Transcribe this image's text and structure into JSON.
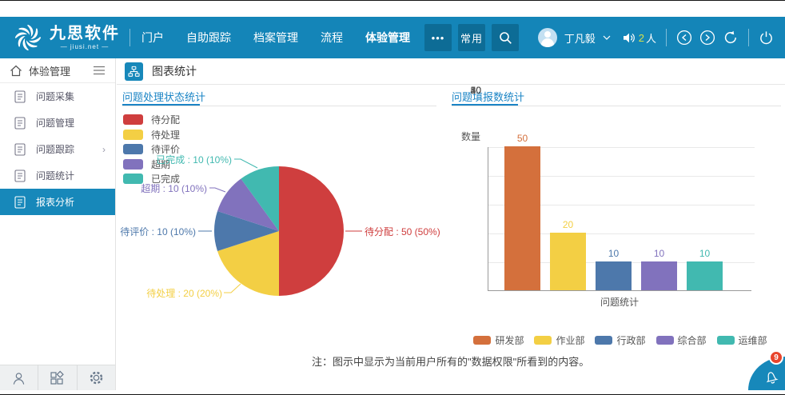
{
  "brand": {
    "name": "九思软件",
    "domain": "— jiusi.net —"
  },
  "topnav": {
    "items": [
      "门户",
      "自助跟踪",
      "档案管理",
      "流程",
      "体验管理"
    ],
    "active": "体验管理",
    "more_label": "•••",
    "quick_label": "常用"
  },
  "user": {
    "name": "丁凡毅",
    "online_count": 2,
    "online_unit": "人"
  },
  "sidebar": {
    "title": "体验管理",
    "items": [
      {
        "label": "问题采集"
      },
      {
        "label": "问题管理"
      },
      {
        "label": "问题跟踪",
        "has_children": true
      },
      {
        "label": "问题统计"
      },
      {
        "label": "报表分析",
        "selected": true
      }
    ]
  },
  "page": {
    "title": "图表统计"
  },
  "note": "注：图示中显示为当前用户所有的\"数据权限\"所看到的内容。",
  "theme": {
    "navbar": "#1485b8",
    "navbar_dark": "#0d6c96",
    "accent": "#1788ba",
    "title_blue": "#1a84c5",
    "badge_red": "#e8452c",
    "online_count_color": "#d7e14a"
  },
  "chart_data": [
    {
      "type": "pie",
      "title": "问题处理状态统计",
      "legend_position": "top-left",
      "slices": [
        {
          "name": "待分配",
          "value": 50,
          "pct": "50%",
          "color": "#cf3e3e",
          "label": "待分配 : 50 (50%)"
        },
        {
          "name": "待处理",
          "value": 20,
          "pct": "20%",
          "color": "#f3cf44",
          "label": "待处理 : 20 (20%)"
        },
        {
          "name": "待评价",
          "value": 10,
          "pct": "10%",
          "color": "#4d78ab",
          "label": "待评价 : 10 (10%)"
        },
        {
          "name": "超期",
          "value": 10,
          "pct": "10%",
          "color": "#8172bd",
          "label": "超期 : 10 (10%)"
        },
        {
          "name": "已完成",
          "value": 10,
          "pct": "10%",
          "color": "#41b9b0",
          "label": "已完成 : 10 (10%)"
        }
      ]
    },
    {
      "type": "bar",
      "title": "问题填报数统计",
      "ylabel": "数量",
      "xlabel": "问题统计",
      "ylim": [
        0,
        50
      ],
      "yticks": [
        0,
        10,
        20,
        30,
        40,
        50
      ],
      "categories": [
        "问题统计"
      ],
      "legend_position": "bottom",
      "grid": true,
      "series": [
        {
          "name": "研发部",
          "values": [
            50
          ],
          "color": "#d4703c"
        },
        {
          "name": "作业部",
          "values": [
            20
          ],
          "color": "#f3cf44"
        },
        {
          "name": "行政部",
          "values": [
            10
          ],
          "color": "#4d78ab"
        },
        {
          "name": "综合部",
          "values": [
            10
          ],
          "color": "#8172bd"
        },
        {
          "name": "运维部",
          "values": [
            10
          ],
          "color": "#41b9b0"
        }
      ]
    }
  ]
}
